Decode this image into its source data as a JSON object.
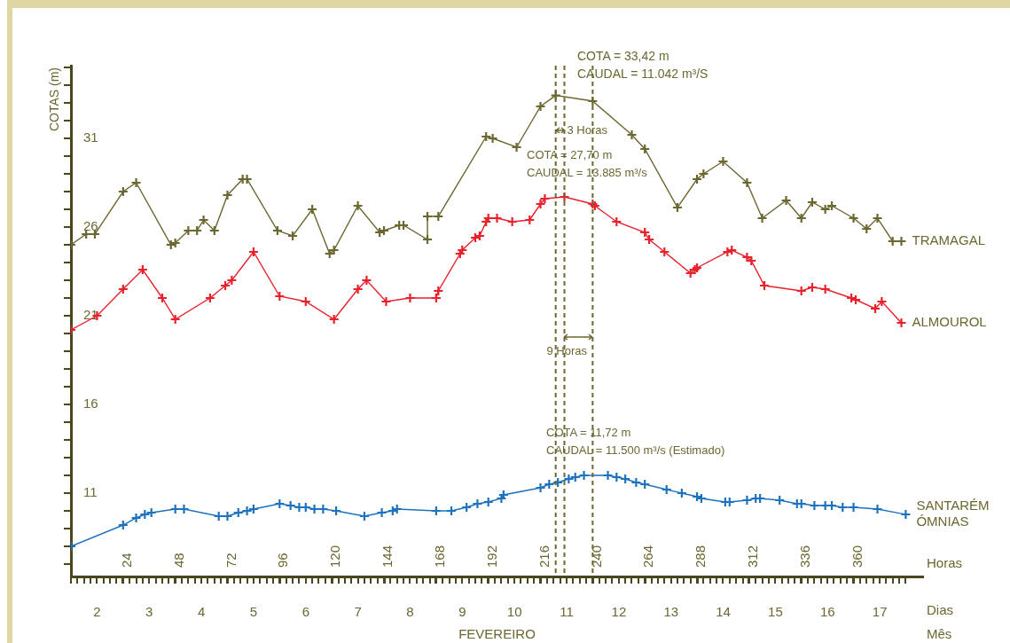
{
  "chart_data": {
    "type": "line",
    "marker": "cross",
    "ylabel": "COTAS (m)",
    "xlabel": "Horas",
    "x2label": "Dias",
    "xlim": [
      0,
      392
    ],
    "ylim": [
      6.3,
      35.1
    ],
    "x2lim": [
      1.5,
      17.83
    ],
    "xticks": [
      {
        "value": 0,
        "label": null
      },
      {
        "value": 3,
        "label": null
      },
      {
        "value": 6,
        "label": null
      },
      {
        "value": 9,
        "label": null
      },
      {
        "value": 12,
        "label": null
      },
      {
        "value": 15,
        "label": null
      },
      {
        "value": 18,
        "label": null
      },
      {
        "value": 21,
        "label": null
      },
      24,
      {
        "value": 27,
        "label": null
      },
      {
        "value": 30,
        "label": null
      },
      {
        "value": 33,
        "label": null
      },
      {
        "value": 36,
        "label": null
      },
      {
        "value": 39,
        "label": null
      },
      {
        "value": 42,
        "label": null
      },
      {
        "value": 45,
        "label": null
      },
      48,
      {
        "value": 51,
        "label": null
      },
      {
        "value": 54,
        "label": null
      },
      {
        "value": 57,
        "label": null
      },
      {
        "value": 60,
        "label": null
      },
      {
        "value": 63,
        "label": null
      },
      {
        "value": 66,
        "label": null
      },
      {
        "value": 69,
        "label": null
      },
      72,
      {
        "value": 75,
        "label": null
      },
      {
        "value": 78,
        "label": null
      },
      {
        "value": 81,
        "label": null
      },
      {
        "value": 84,
        "label": null
      },
      {
        "value": 87,
        "label": null
      },
      {
        "value": 90,
        "label": null
      },
      {
        "value": 93,
        "label": null
      },
      96,
      {
        "value": 99,
        "label": null
      },
      {
        "value": 102,
        "label": null
      },
      {
        "value": 105,
        "label": null
      },
      {
        "value": 108,
        "label": null
      },
      {
        "value": 111,
        "label": null
      },
      {
        "value": 114,
        "label": null
      },
      {
        "value": 117,
        "label": null
      },
      120,
      {
        "value": 123,
        "label": null
      },
      {
        "value": 126,
        "label": null
      },
      {
        "value": 129,
        "label": null
      },
      {
        "value": 132,
        "label": null
      },
      {
        "value": 135,
        "label": null
      },
      {
        "value": 138,
        "label": null
      },
      {
        "value": 141,
        "label": null
      },
      144,
      {
        "value": 147,
        "label": null
      },
      {
        "value": 150,
        "label": null
      },
      {
        "value": 153,
        "label": null
      },
      {
        "value": 156,
        "label": null
      },
      {
        "value": 159,
        "label": null
      },
      {
        "value": 162,
        "label": null
      },
      {
        "value": 165,
        "label": null
      },
      168,
      {
        "value": 171,
        "label": null
      },
      {
        "value": 174,
        "label": null
      },
      {
        "value": 177,
        "label": null
      },
      {
        "value": 180,
        "label": null
      },
      {
        "value": 183,
        "label": null
      },
      {
        "value": 186,
        "label": null
      },
      {
        "value": 189,
        "label": null
      },
      192,
      {
        "value": 195,
        "label": null
      },
      {
        "value": 198,
        "label": null
      },
      {
        "value": 201,
        "label": null
      },
      {
        "value": 204,
        "label": null
      },
      {
        "value": 207,
        "label": null
      },
      {
        "value": 210,
        "label": null
      },
      {
        "value": 213,
        "label": null
      },
      216,
      {
        "value": 219,
        "label": null
      },
      {
        "value": 222,
        "label": null
      },
      {
        "value": 225,
        "label": null
      },
      {
        "value": 228,
        "label": null
      },
      {
        "value": 231,
        "label": null
      },
      {
        "value": 234,
        "label": null
      },
      {
        "value": 237,
        "label": null
      },
      240,
      {
        "value": 243,
        "label": null
      },
      {
        "value": 246,
        "label": null
      },
      {
        "value": 249,
        "label": null
      },
      {
        "value": 252,
        "label": null
      },
      {
        "value": 255,
        "label": null
      },
      {
        "value": 258,
        "label": null
      },
      {
        "value": 261,
        "label": null
      },
      264,
      {
        "value": 267,
        "label": null
      },
      {
        "value": 270,
        "label": null
      },
      {
        "value": 273,
        "label": null
      },
      {
        "value": 276,
        "label": null
      },
      {
        "value": 279,
        "label": null
      },
      {
        "value": 282,
        "label": null
      },
      {
        "value": 285,
        "label": null
      },
      288,
      {
        "value": 291,
        "label": null
      },
      {
        "value": 294,
        "label": null
      },
      {
        "value": 297,
        "label": null
      },
      {
        "value": 300,
        "label": null
      },
      {
        "value": 303,
        "label": null
      },
      {
        "value": 306,
        "label": null
      },
      {
        "value": 309,
        "label": null
      },
      312,
      {
        "value": 315,
        "label": null
      },
      {
        "value": 318,
        "label": null
      },
      {
        "value": 321,
        "label": null
      },
      {
        "value": 324,
        "label": null
      },
      {
        "value": 327,
        "label": null
      },
      {
        "value": 330,
        "label": null
      },
      {
        "value": 333,
        "label": null
      },
      336,
      {
        "value": 339,
        "label": null
      },
      {
        "value": 342,
        "label": null
      },
      {
        "value": 345,
        "label": null
      },
      {
        "value": 348,
        "label": null
      },
      {
        "value": 351,
        "label": null
      },
      {
        "value": 354,
        "label": null
      },
      {
        "value": 357,
        "label": null
      },
      360,
      {
        "value": 363,
        "label": null
      },
      {
        "value": 366,
        "label": null
      },
      {
        "value": 369,
        "label": null
      },
      {
        "value": 372,
        "label": null
      },
      {
        "value": 375,
        "label": null
      },
      {
        "value": 378,
        "label": null
      },
      {
        "value": 381,
        "label": null
      },
      {
        "value": 384,
        "label": null
      }
    ],
    "x2ticks": [
      2,
      3,
      4,
      5,
      6,
      7,
      8,
      9,
      10,
      11,
      12,
      13,
      14,
      15,
      16,
      17
    ],
    "yticks": [
      {
        "value": 7,
        "label": null
      },
      {
        "value": 8,
        "label": null
      },
      {
        "value": 9,
        "label": null
      },
      {
        "value": 10,
        "label": null
      },
      11,
      {
        "value": 12,
        "label": null
      },
      {
        "value": 13,
        "label": null
      },
      {
        "value": 14,
        "label": null
      },
      {
        "value": 15,
        "label": null
      },
      16,
      {
        "value": 17,
        "label": null
      },
      {
        "value": 18,
        "label": null
      },
      {
        "value": 19,
        "label": null
      },
      {
        "value": 20,
        "label": null
      },
      21,
      {
        "value": 22,
        "label": null
      },
      {
        "value": 23,
        "label": null
      },
      {
        "value": 24,
        "label": null
      },
      {
        "value": 25,
        "label": null
      },
      26,
      {
        "value": 27,
        "label": null
      },
      {
        "value": 28,
        "label": null
      },
      {
        "value": 29,
        "label": null
      },
      {
        "value": 30,
        "label": null
      },
      31,
      {
        "value": 32,
        "label": null
      },
      {
        "value": 33,
        "label": null
      },
      {
        "value": 34,
        "label": null
      },
      {
        "value": 35,
        "label": null
      }
    ],
    "series": [
      {
        "name": "TRAMAGAL",
        "color": "#6b6730",
        "x": [
          0,
          7,
          11,
          24,
          30,
          46,
          48,
          54,
          58,
          61,
          66,
          72,
          79,
          81,
          95,
          102,
          111,
          119,
          121,
          132,
          142,
          144,
          151,
          153,
          164,
          164,
          169,
          191,
          194,
          205,
          216,
          223,
          240,
          258,
          264,
          279,
          288,
          291,
          300,
          311,
          318,
          329,
          336,
          341,
          347,
          350,
          360,
          366,
          371,
          378,
          382
        ],
        "values": [
          25.0,
          25.6,
          25.6,
          28.0,
          28.5,
          25.0,
          25.1,
          25.8,
          25.8,
          26.4,
          25.8,
          27.8,
          28.7,
          28.7,
          25.8,
          25.5,
          27.0,
          24.5,
          24.7,
          27.2,
          25.7,
          25.8,
          26.1,
          26.1,
          25.3,
          26.6,
          26.6,
          31.1,
          31.0,
          30.5,
          32.8,
          33.42,
          33.1,
          31.2,
          30.4,
          27.1,
          28.7,
          29.0,
          29.7,
          28.5,
          26.5,
          27.5,
          26.5,
          27.4,
          27.0,
          27.2,
          26.5,
          25.9,
          26.5,
          25.2,
          25.2
        ]
      },
      {
        "name": "ALMOUROL",
        "color": "#e8212b",
        "x": [
          0,
          12,
          24,
          33,
          42,
          48,
          64,
          71,
          74,
          84,
          96,
          108,
          121,
          132,
          136,
          145,
          156,
          168,
          169,
          179,
          180,
          186,
          188,
          191,
          192,
          196,
          203,
          211,
          216,
          218,
          227,
          240,
          241,
          251,
          264,
          266,
          273,
          285,
          287,
          288,
          302,
          304,
          311,
          313,
          319,
          336,
          341,
          347,
          359,
          361,
          370,
          373,
          382
        ],
        "values": [
          20.2,
          21.0,
          22.5,
          23.6,
          22.0,
          20.8,
          22.0,
          22.7,
          23.0,
          24.6,
          22.1,
          21.8,
          20.8,
          22.5,
          23.0,
          21.8,
          22.0,
          22.0,
          22.4,
          24.5,
          24.7,
          25.4,
          25.5,
          26.3,
          26.5,
          26.5,
          26.3,
          26.4,
          27.3,
          27.6,
          27.7,
          27.3,
          27.2,
          26.3,
          25.7,
          25.3,
          24.6,
          23.4,
          23.6,
          23.7,
          24.6,
          24.7,
          24.3,
          24.1,
          22.7,
          22.4,
          22.6,
          22.5,
          22.0,
          21.9,
          21.4,
          21.8,
          20.6
        ]
      },
      {
        "name": "SANTARÉM ÓMNIAS",
        "color": "#1d72bf",
        "x": [
          0,
          24,
          30,
          34,
          37,
          48,
          52,
          68,
          72,
          77,
          81,
          84,
          96,
          101,
          105,
          108,
          112,
          116,
          122,
          135,
          143,
          148,
          150,
          168,
          175,
          182,
          187,
          192,
          198,
          199,
          216,
          220,
          224,
          229,
          232,
          236,
          247,
          251,
          255,
          260,
          264,
          274,
          281,
          288,
          290,
          301,
          303,
          311,
          315,
          317,
          326,
          334,
          336,
          342,
          347,
          350,
          355,
          360,
          371,
          384
        ],
        "values": [
          8.0,
          9.2,
          9.6,
          9.8,
          9.9,
          10.1,
          10.1,
          9.7,
          9.7,
          9.9,
          10.0,
          10.1,
          10.4,
          10.3,
          10.2,
          10.2,
          10.1,
          10.1,
          10.0,
          9.7,
          9.9,
          10.0,
          10.1,
          10.0,
          10.0,
          10.2,
          10.4,
          10.5,
          10.7,
          10.9,
          11.3,
          11.5,
          11.6,
          11.8,
          11.9,
          12.0,
          12.0,
          11.9,
          11.8,
          11.6,
          11.5,
          11.2,
          11.0,
          10.8,
          10.7,
          10.5,
          10.5,
          10.6,
          10.7,
          10.7,
          10.6,
          10.4,
          10.4,
          10.3,
          10.3,
          10.3,
          10.2,
          10.2,
          10.1,
          9.8
        ]
      }
    ],
    "ref_lines": [
      {
        "axis": "x",
        "value": 223,
        "color": "#6b6730",
        "line_style": "dashed"
      },
      {
        "axis": "x",
        "value": 227,
        "label": "3 Horas",
        "color": "#6b6730",
        "line_style": "dashed"
      },
      {
        "axis": "x",
        "value": 240,
        "label": "9 Horas",
        "color": "#6b6730",
        "line_style": "dashed"
      }
    ],
    "annotations": [
      "COTA = 33,42 m",
      "CAUDAL = 11.042 m³/S",
      "COTA = 27,70 m",
      "CAUDAL = 13.885 m³/s",
      "COTA = 11,72 m",
      "CAUDAL = 11.500 m³/s (Estimado)",
      "FEVEREIRO",
      "Mês"
    ]
  }
}
